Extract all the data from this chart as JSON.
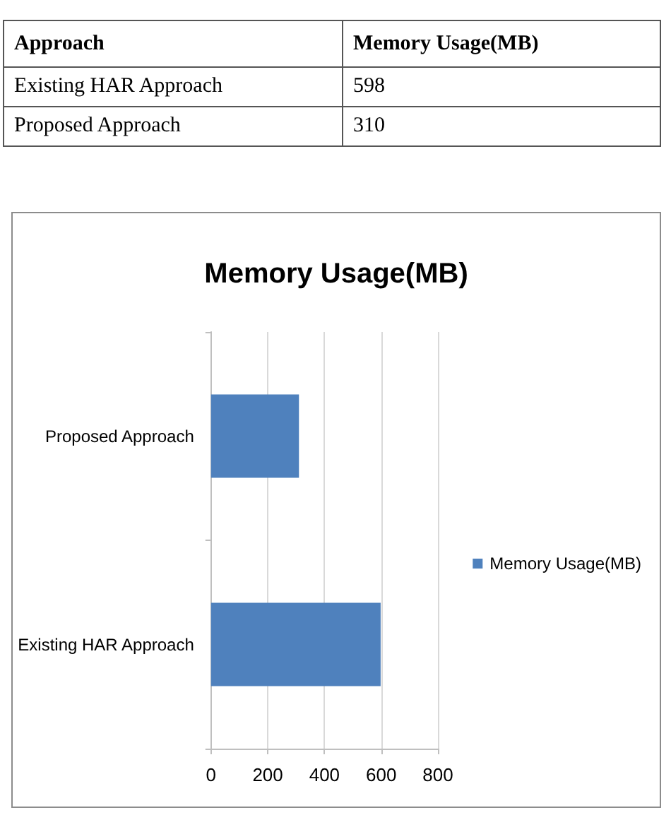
{
  "chart_data": [
    {
      "type": "other",
      "categories": [
        "Existing HAR Approach",
        "Proposed Approach"
      ],
      "series": [
        {
          "name": "Memory Usage(MB)",
          "values": [
            598,
            310
          ]
        }
      ],
      "data_labels": true,
      "annotations": [
        "Approach"
      ]
    },
    {
      "type": "bar",
      "orientation": "horizontal",
      "title": "Memory Usage(MB)",
      "categories": [
        "Proposed Approach",
        "Existing HAR Approach"
      ],
      "series": [
        {
          "name": "Memory Usage(MB)",
          "color": "#4f81bd",
          "values": [
            310,
            598
          ]
        }
      ],
      "xlim": [
        0,
        800
      ],
      "xticks": [
        0,
        200,
        400,
        600,
        800
      ],
      "grid": "x",
      "legend": "right"
    }
  ]
}
